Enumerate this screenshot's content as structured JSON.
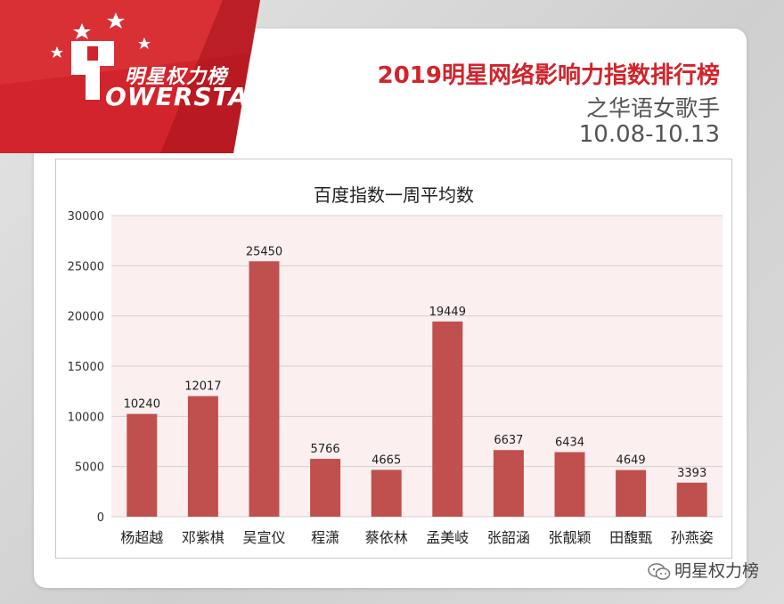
{
  "brand": {
    "logo_cn": "明星权力榜",
    "logo_en": "OWERSTAR",
    "logo_mark": "P",
    "colors": {
      "red": "#d1242c",
      "dark_red": "#a8121a",
      "bar": "#c0504d"
    }
  },
  "header": {
    "title": "2019明星网络影响力指数排行榜",
    "subtitle": "之华语女歌手",
    "date_range": "10.08-10.13"
  },
  "watermark": {
    "text": "明星权力榜",
    "icon": "wechat-icon"
  },
  "chart_data": {
    "type": "bar",
    "title": "百度指数一周平均数",
    "categories": [
      "杨超越",
      "邓紫棋",
      "吴宣仪",
      "程潇",
      "蔡依林",
      "孟美岐",
      "张韶涵",
      "张靓颖",
      "田馥甄",
      "孙燕姿"
    ],
    "values": [
      10240,
      12017,
      25450,
      5766,
      4665,
      19449,
      6637,
      6434,
      4649,
      3393
    ],
    "ylim": [
      0,
      30000
    ],
    "yticks": [
      0,
      5000,
      10000,
      15000,
      20000,
      25000,
      30000
    ],
    "xlabel": "",
    "ylabel": "",
    "grid": true,
    "bar_color": "#c0504d",
    "plot_bg": "#fbeff0"
  }
}
